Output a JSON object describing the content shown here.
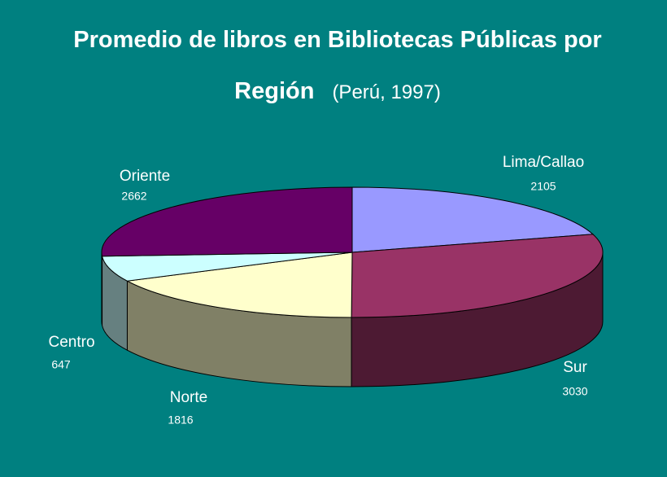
{
  "chart_data": {
    "type": "pie3d",
    "title": "Promedio de libros en Bibliotecas Públicas por Región",
    "subtitle": "(Perú, 1997)",
    "categories": [
      "Lima/Callao",
      "Sur",
      "Norte",
      "Centro",
      "Oriente"
    ],
    "values": [
      2105,
      3030,
      1816,
      647,
      2662
    ],
    "colors": [
      "#9999ff",
      "#993366",
      "#ffffcc",
      "#ccffff",
      "#660066"
    ]
  }
}
